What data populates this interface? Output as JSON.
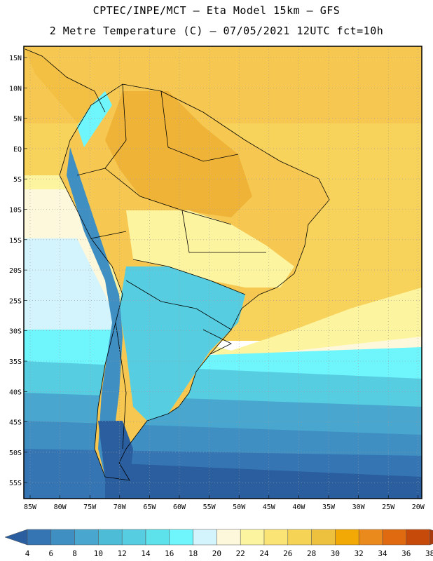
{
  "title": {
    "line1": "CPTEC/INPE/MCT –  Eta Model 15km – GFS",
    "line2": "2 Metre Temperature (C) – 07/05/2021 12UTC fct=10h"
  },
  "lat_labels": [
    "15N",
    "10N",
    "5N",
    "EQ",
    "5S",
    "10S",
    "15S",
    "20S",
    "25S",
    "30S",
    "35S",
    "40S",
    "45S",
    "50S",
    "55S"
  ],
  "lon_labels": [
    "85W",
    "80W",
    "75W",
    "70W",
    "65W",
    "60W",
    "55W",
    "50W",
    "45W",
    "40W",
    "35W",
    "30W",
    "25W",
    "20W"
  ],
  "colorbar": {
    "labels": [
      "4",
      "6",
      "8",
      "10",
      "12",
      "14",
      "16",
      "18",
      "20",
      "22",
      "24",
      "26",
      "28",
      "30",
      "32",
      "34",
      "36",
      "38"
    ],
    "colors": [
      "#2a5e9e",
      "#3575b4",
      "#3f8fc2",
      "#49a7cf",
      "#4dbcd7",
      "#56cde0",
      "#5de1ea",
      "#6ff5fc",
      "#d3f4fc",
      "#fdf8dc",
      "#fdf4a0",
      "#fbe476",
      "#f5d355",
      "#edc13e",
      "#f2a805",
      "#eb8a1c",
      "#df6a10",
      "#c64a0a",
      "#a83a0d"
    ]
  },
  "palette": {
    "warm_sea": "#f8d35c",
    "tropical_land": "#f6c851",
    "hot_land": "#efb338",
    "mild": "#fdf4a0",
    "pale": "#fdf8dc",
    "cool_light": "#d3f4fc",
    "cyan": "#6ff5fc",
    "cool": "#56cde0",
    "cold": "#3f8fc2",
    "coldest": "#2a5e9e"
  }
}
